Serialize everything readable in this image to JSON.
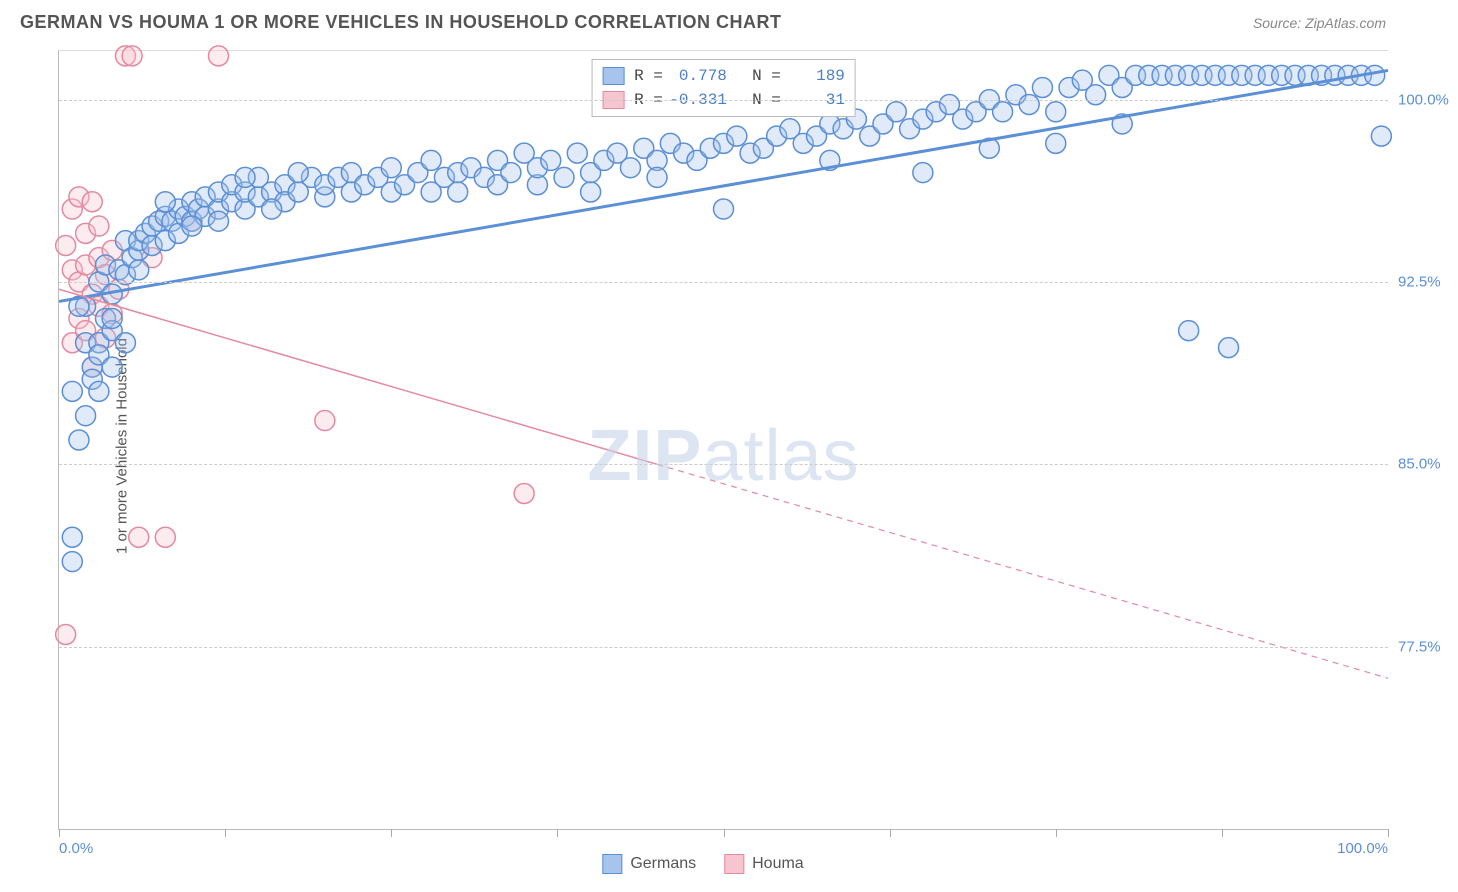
{
  "header": {
    "title": "GERMAN VS HOUMA 1 OR MORE VEHICLES IN HOUSEHOLD CORRELATION CHART",
    "source": "Source: ZipAtlas.com"
  },
  "chart": {
    "type": "scatter",
    "watermark": "ZIPatlas",
    "ylabel": "1 or more Vehicles in Household",
    "xlim": [
      0,
      100
    ],
    "ylim": [
      70,
      102
    ],
    "x_label_min": "0.0%",
    "x_label_max": "100.0%",
    "y_ticks": [
      77.5,
      85.0,
      92.5,
      100.0
    ],
    "y_tick_labels": [
      "77.5%",
      "85.0%",
      "92.5%",
      "100.0%"
    ],
    "x_tick_positions": [
      0,
      12.5,
      25,
      37.5,
      50,
      62.5,
      75,
      87.5,
      100
    ],
    "grid_color": "#cccccc",
    "background_color": "#ffffff",
    "axis_color": "#bbbbbb",
    "tick_label_color": "#5b8fd6",
    "series": [
      {
        "name": "Germans",
        "color_fill": "#a6c4ec",
        "color_stroke": "#5b8fd6",
        "R": "0.778",
        "N": "189",
        "trend": {
          "x1": 0,
          "y1": 91.7,
          "x2": 100,
          "y2": 101.2,
          "solid_until_x": 100,
          "stroke_width": 3
        },
        "points": [
          [
            1,
            81
          ],
          [
            1,
            82
          ],
          [
            1,
            88
          ],
          [
            2,
            90
          ],
          [
            2,
            91.5
          ],
          [
            2.5,
            89
          ],
          [
            3,
            90
          ],
          [
            3,
            92.5
          ],
          [
            3.5,
            91
          ],
          [
            3.5,
            93.2
          ],
          [
            4,
            90.5
          ],
          [
            4,
            92
          ],
          [
            4.5,
            93
          ],
          [
            5,
            92.8
          ],
          [
            5,
            94.2
          ],
          [
            5.5,
            93.5
          ],
          [
            6,
            93.8
          ],
          [
            6,
            94.2
          ],
          [
            6.5,
            94.5
          ],
          [
            7,
            94
          ],
          [
            7,
            94.8
          ],
          [
            7.5,
            95
          ],
          [
            8,
            94.2
          ],
          [
            8,
            95.2
          ],
          [
            8.5,
            95
          ],
          [
            9,
            94.5
          ],
          [
            9,
            95.5
          ],
          [
            9.5,
            95.2
          ],
          [
            10,
            95
          ],
          [
            10,
            95.8
          ],
          [
            10.5,
            95.5
          ],
          [
            11,
            95.2
          ],
          [
            11,
            96
          ],
          [
            12,
            95.5
          ],
          [
            12,
            96.2
          ],
          [
            13,
            95.8
          ],
          [
            13,
            96.5
          ],
          [
            14,
            95.5
          ],
          [
            14,
            96.2
          ],
          [
            15,
            96
          ],
          [
            15,
            96.8
          ],
          [
            16,
            96.2
          ],
          [
            17,
            96.5
          ],
          [
            17,
            95.8
          ],
          [
            18,
            96.2
          ],
          [
            19,
            96.8
          ],
          [
            20,
            96
          ],
          [
            20,
            96.5
          ],
          [
            21,
            96.8
          ],
          [
            22,
            96.2
          ],
          [
            22,
            97
          ],
          [
            23,
            96.5
          ],
          [
            24,
            96.8
          ],
          [
            25,
            96.2
          ],
          [
            25,
            97.2
          ],
          [
            26,
            96.5
          ],
          [
            27,
            97
          ],
          [
            28,
            96.2
          ],
          [
            28,
            97.5
          ],
          [
            29,
            96.8
          ],
          [
            30,
            97
          ],
          [
            30,
            96.2
          ],
          [
            31,
            97.2
          ],
          [
            32,
            96.8
          ],
          [
            33,
            97.5
          ],
          [
            33,
            96.5
          ],
          [
            34,
            97
          ],
          [
            35,
            97.8
          ],
          [
            36,
            96.5
          ],
          [
            36,
            97.2
          ],
          [
            37,
            97.5
          ],
          [
            38,
            96.8
          ],
          [
            39,
            97.8
          ],
          [
            40,
            97
          ],
          [
            40,
            96.2
          ],
          [
            41,
            97.5
          ],
          [
            42,
            97.8
          ],
          [
            43,
            97.2
          ],
          [
            44,
            98
          ],
          [
            45,
            97.5
          ],
          [
            45,
            96.8
          ],
          [
            46,
            98.2
          ],
          [
            47,
            97.8
          ],
          [
            48,
            97.5
          ],
          [
            49,
            98
          ],
          [
            50,
            98.2
          ],
          [
            50,
            95.5
          ],
          [
            51,
            98.5
          ],
          [
            52,
            97.8
          ],
          [
            53,
            98
          ],
          [
            54,
            98.5
          ],
          [
            55,
            98.8
          ],
          [
            56,
            98.2
          ],
          [
            57,
            98.5
          ],
          [
            58,
            99
          ],
          [
            58,
            97.5
          ],
          [
            59,
            98.8
          ],
          [
            60,
            99.2
          ],
          [
            61,
            98.5
          ],
          [
            62,
            99
          ],
          [
            63,
            99.5
          ],
          [
            64,
            98.8
          ],
          [
            65,
            99.2
          ],
          [
            65,
            97
          ],
          [
            66,
            99.5
          ],
          [
            67,
            99.8
          ],
          [
            68,
            99.2
          ],
          [
            69,
            99.5
          ],
          [
            70,
            100
          ],
          [
            70,
            98
          ],
          [
            71,
            99.5
          ],
          [
            72,
            100.2
          ],
          [
            73,
            99.8
          ],
          [
            74,
            100.5
          ],
          [
            75,
            99.5
          ],
          [
            75,
            98.2
          ],
          [
            76,
            100.5
          ],
          [
            77,
            100.8
          ],
          [
            78,
            100.2
          ],
          [
            79,
            101
          ],
          [
            80,
            100.5
          ],
          [
            80,
            99
          ],
          [
            81,
            101
          ],
          [
            82,
            101
          ],
          [
            83,
            101
          ],
          [
            84,
            101
          ],
          [
            85,
            101
          ],
          [
            85,
            90.5
          ],
          [
            86,
            101
          ],
          [
            87,
            101
          ],
          [
            88,
            101
          ],
          [
            88,
            89.8
          ],
          [
            89,
            101
          ],
          [
            90,
            101
          ],
          [
            91,
            101
          ],
          [
            92,
            101
          ],
          [
            93,
            101
          ],
          [
            94,
            101
          ],
          [
            95,
            101
          ],
          [
            96,
            101
          ],
          [
            97,
            101
          ],
          [
            98,
            101
          ],
          [
            99,
            101
          ],
          [
            99.5,
            98.5
          ],
          [
            3,
            89.5
          ],
          [
            4,
            91
          ],
          [
            6,
            93
          ],
          [
            8,
            95.8
          ],
          [
            10,
            94.8
          ],
          [
            12,
            95
          ],
          [
            14,
            96.8
          ],
          [
            16,
            95.5
          ],
          [
            18,
            97
          ],
          [
            2,
            87
          ],
          [
            2.5,
            88.5
          ],
          [
            3,
            88
          ],
          [
            4,
            89
          ],
          [
            5,
            90
          ],
          [
            1.5,
            86
          ],
          [
            1.5,
            91.5
          ]
        ]
      },
      {
        "name": "Houma",
        "color_fill": "#f6c5d0",
        "color_stroke": "#e48aa0",
        "R": "-0.331",
        "N": "31",
        "trend": {
          "x1": 0,
          "y1": 92.2,
          "x2": 100,
          "y2": 76.2,
          "solid_until_x": 45,
          "stroke_width": 1.5
        },
        "points": [
          [
            0.5,
            78
          ],
          [
            0.5,
            94
          ],
          [
            1,
            95.5
          ],
          [
            1,
            93
          ],
          [
            1,
            90
          ],
          [
            1.5,
            96
          ],
          [
            1.5,
            92.5
          ],
          [
            1.5,
            91
          ],
          [
            2,
            94.5
          ],
          [
            2,
            93.2
          ],
          [
            2,
            90.5
          ],
          [
            2.5,
            95.8
          ],
          [
            2.5,
            92
          ],
          [
            2.5,
            89
          ],
          [
            3,
            94.8
          ],
          [
            3,
            91.5
          ],
          [
            3,
            93.5
          ],
          [
            3.5,
            92.8
          ],
          [
            3.5,
            90.2
          ],
          [
            4,
            93.8
          ],
          [
            4,
            91.2
          ],
          [
            4.5,
            92.2
          ],
          [
            5,
            101.8
          ],
          [
            5.5,
            101.8
          ],
          [
            6,
            82
          ],
          [
            8,
            82
          ],
          [
            12,
            101.8
          ],
          [
            20,
            86.8
          ],
          [
            35,
            83.8
          ],
          [
            10,
            95
          ],
          [
            7,
            93.5
          ]
        ]
      }
    ],
    "legend_bottom": [
      {
        "label": "Germans",
        "fill": "#a6c4ec",
        "stroke": "#5b8fd6"
      },
      {
        "label": "Houma",
        "fill": "#f6c5d0",
        "stroke": "#e48aa0"
      }
    ]
  }
}
